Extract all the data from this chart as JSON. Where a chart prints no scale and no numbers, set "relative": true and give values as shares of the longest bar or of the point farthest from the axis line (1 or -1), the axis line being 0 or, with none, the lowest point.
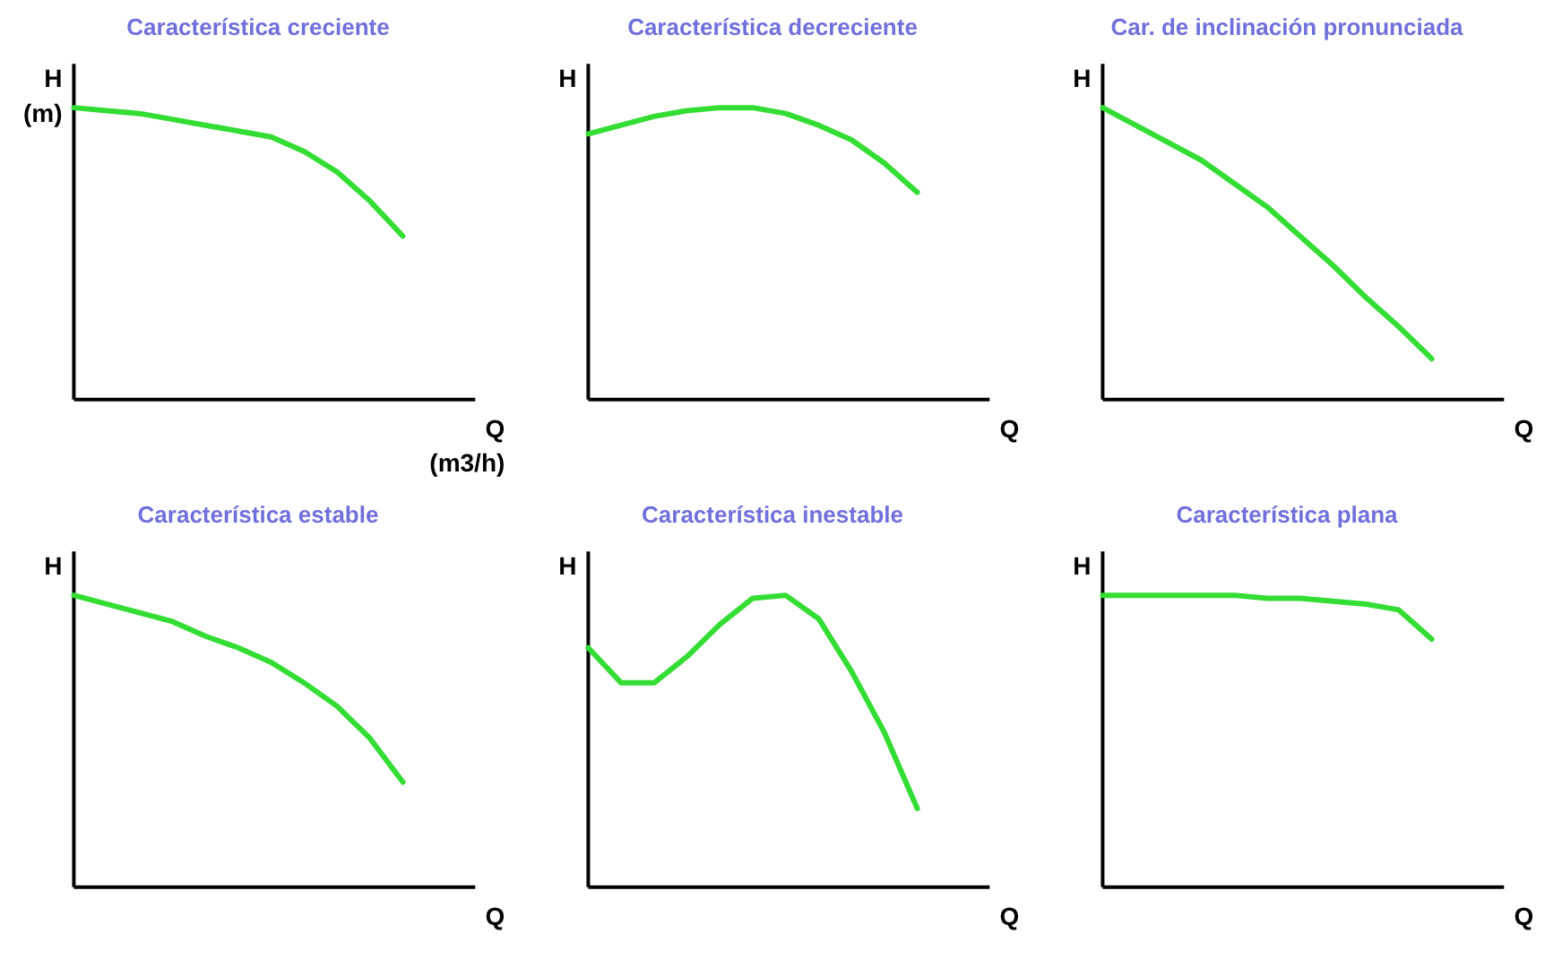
{
  "chart_data": [
    {
      "type": "line",
      "title": "Característica creciente",
      "xlabel": "Q (m3/h)",
      "ylabel": "H (m)",
      "relative": true,
      "categories": [
        null,
        null,
        null,
        null,
        null,
        null,
        null,
        null,
        null,
        null,
        null
      ],
      "series": [
        {
          "color": "#33dd33",
          "values": [
            1,
            0.99,
            0.98,
            0.96,
            0.94,
            0.92,
            0.9,
            0.85,
            0.78,
            0.68,
            0.56
          ]
        }
      ]
    },
    {
      "type": "line",
      "title": "Característica decreciente",
      "xlabel": "Q",
      "ylabel": "H",
      "relative": true,
      "categories": [
        null,
        null,
        null,
        null,
        null,
        null,
        null,
        null,
        null,
        null,
        null
      ],
      "series": [
        {
          "color": "#33dd33",
          "values": [
            0.91,
            0.94,
            0.97,
            0.99,
            1,
            1,
            0.98,
            0.94,
            0.89,
            0.81,
            0.71
          ]
        }
      ]
    },
    {
      "type": "line",
      "title": "Car. de inclinación pronunciada",
      "xlabel": "Q",
      "ylabel": "H",
      "relative": true,
      "categories": [
        null,
        null,
        null,
        null,
        null,
        null,
        null,
        null,
        null,
        null,
        null
      ],
      "series": [
        {
          "color": "#33dd33",
          "values": [
            1,
            0.94,
            0.88,
            0.82,
            0.74,
            0.66,
            0.56,
            0.46,
            0.35,
            0.25,
            0.14
          ]
        }
      ]
    },
    {
      "type": "line",
      "title": "Característica estable",
      "xlabel": "Q",
      "ylabel": "H",
      "relative": true,
      "categories": [
        null,
        null,
        null,
        null,
        null,
        null,
        null,
        null,
        null,
        null,
        null
      ],
      "series": [
        {
          "color": "#33dd33",
          "values": [
            1,
            0.97,
            0.94,
            0.91,
            0.86,
            0.82,
            0.77,
            0.7,
            0.62,
            0.51,
            0.36
          ]
        }
      ]
    },
    {
      "type": "line",
      "title": "Característica inestable",
      "xlabel": "Q",
      "ylabel": "H",
      "relative": true,
      "categories": [
        null,
        null,
        null,
        null,
        null,
        null,
        null,
        null,
        null,
        null,
        null
      ],
      "series": [
        {
          "color": "#33dd33",
          "values": [
            0.82,
            0.7,
            0.7,
            0.79,
            0.9,
            0.99,
            1,
            0.92,
            0.74,
            0.53,
            0.27
          ]
        }
      ]
    },
    {
      "type": "line",
      "title": "Característica plana",
      "xlabel": "Q",
      "ylabel": "H",
      "relative": true,
      "categories": [
        null,
        null,
        null,
        null,
        null,
        null,
        null,
        null,
        null,
        null,
        null
      ],
      "series": [
        {
          "color": "#33dd33",
          "values": [
            1,
            1,
            1,
            1,
            1,
            0.99,
            0.99,
            0.98,
            0.97,
            0.95,
            0.85
          ]
        }
      ]
    }
  ]
}
